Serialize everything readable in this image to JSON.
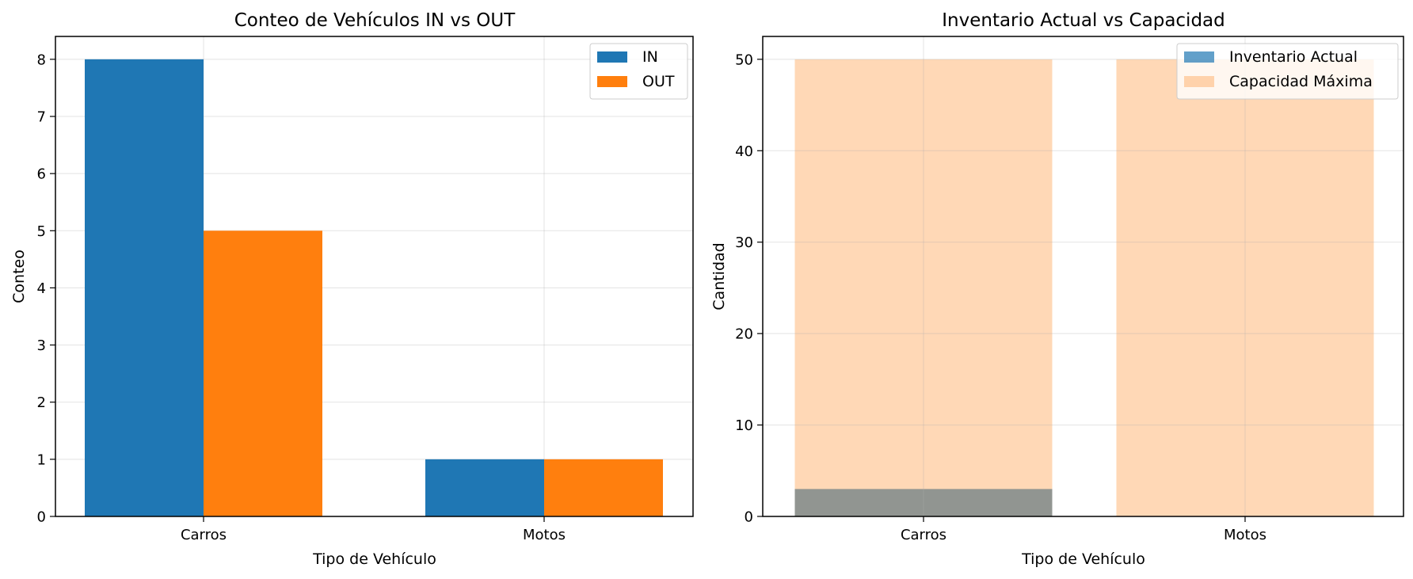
{
  "chart_data": [
    {
      "type": "bar",
      "title": "Conteo de Vehículos IN vs OUT",
      "xlabel": "Tipo de Vehículo",
      "ylabel": "Conteo",
      "categories": [
        "Carros",
        "Motos"
      ],
      "series": [
        {
          "name": "IN",
          "values": [
            8,
            1
          ],
          "color": "#1f77b4"
        },
        {
          "name": "OUT",
          "values": [
            5,
            1
          ],
          "color": "#ff7f0e"
        }
      ],
      "layout": "grouped",
      "ylim": [
        0,
        8.4
      ],
      "yticks": [
        0,
        1,
        2,
        3,
        4,
        5,
        6,
        7,
        8
      ],
      "grid": true,
      "legend_position": "top-right"
    },
    {
      "type": "bar",
      "title": "Inventario Actual vs Capacidad",
      "xlabel": "Tipo de Vehículo",
      "ylabel": "Cantidad",
      "categories": [
        "Carros",
        "Motos"
      ],
      "series": [
        {
          "name": "Inventario Actual",
          "values": [
            3,
            0
          ],
          "color": "#1f77b4",
          "opacity": 0.7
        },
        {
          "name": "Capacidad Máxima",
          "values": [
            50,
            50
          ],
          "color": "#ff7f0e",
          "opacity": 0.3
        }
      ],
      "layout": "overlaid",
      "ylim": [
        0,
        52.5
      ],
      "yticks": [
        0,
        10,
        20,
        30,
        40,
        50
      ],
      "grid": true,
      "legend_position": "top-right"
    }
  ]
}
